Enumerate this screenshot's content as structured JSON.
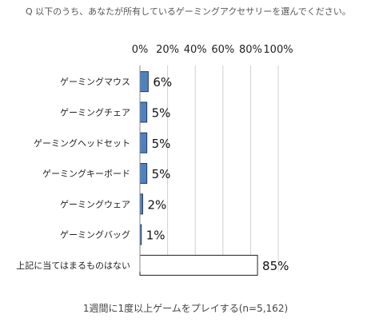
{
  "question": "Q 以下のうち、あなたが所有しているゲーミングアクセサリーを選んでください。",
  "footnote": "1週間に1度以上ゲームをプレイする(n=5,162)",
  "colors": {
    "bar_fill": "#4f81bd",
    "bar_stroke": "#1f3864",
    "none_bar_fill": "#ffffff",
    "none_bar_stroke": "#222222",
    "gridline": "#d0d0d0"
  },
  "chart_data": {
    "type": "bar",
    "orientation": "horizontal",
    "categories": [
      "ゲーミングマウス",
      "ゲーミングチェア",
      "ゲーミングヘッドセット",
      "ゲーミングキーボード",
      "ゲーミングウェア",
      "ゲーミングバッグ",
      "上記に当てはまるものはない"
    ],
    "values": [
      6,
      5,
      5,
      5,
      2,
      1,
      85
    ],
    "value_labels": [
      "6%",
      "5%",
      "5%",
      "5%",
      "2%",
      "1%",
      "85%"
    ],
    "ticks": [
      "0%",
      "20%",
      "40%",
      "60%",
      "80%",
      "100%"
    ],
    "tick_values": [
      0,
      20,
      40,
      60,
      80,
      100
    ],
    "xlim": [
      0,
      100
    ],
    "grid": true
  }
}
